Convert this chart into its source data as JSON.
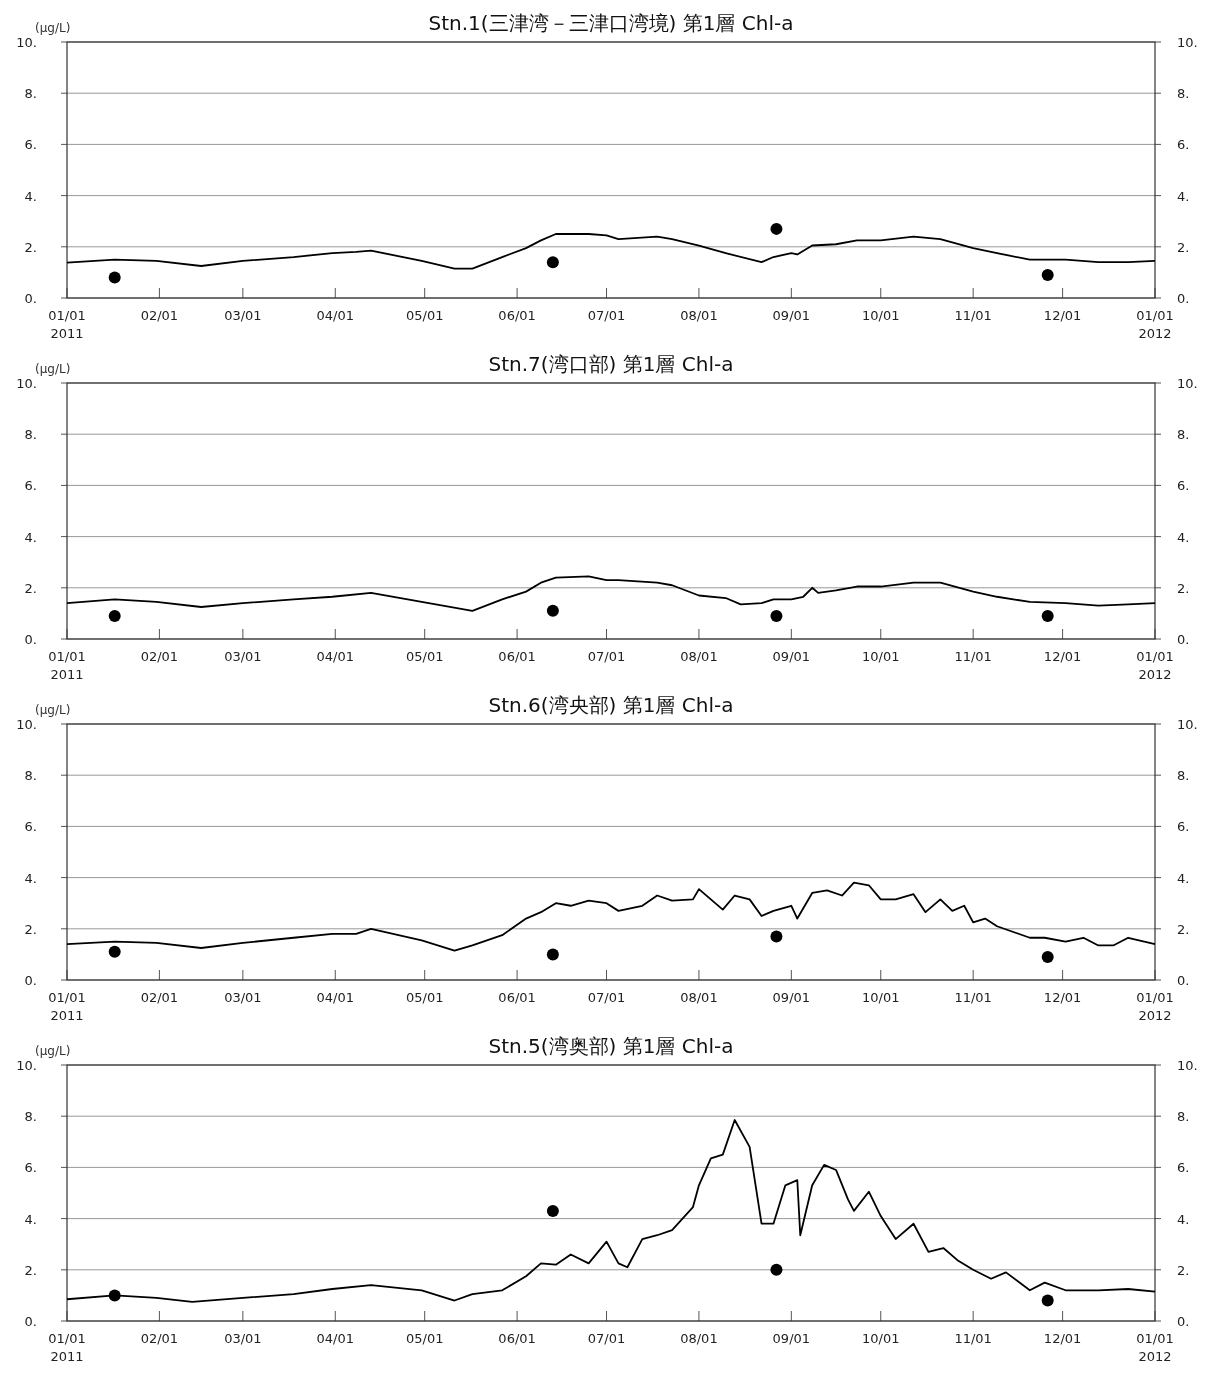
{
  "chart_data": [
    {
      "type": "line",
      "title": "Stn.1(三津湾－三津口湾境) 第1層 Chl-a",
      "ylabel": "(μg/L)",
      "xlim": [
        "2011-01-01",
        "2012-01-01"
      ],
      "xticks": [
        {
          "value": "2011-01-01",
          "label": "01/01\n2011"
        },
        {
          "value": "2011-02-01",
          "label": "02/01"
        },
        {
          "value": "2011-03-01",
          "label": "03/01"
        },
        {
          "value": "2011-04-01",
          "label": "04/01"
        },
        {
          "value": "2011-05-01",
          "label": "05/01"
        },
        {
          "value": "2011-06-01",
          "label": "06/01"
        },
        {
          "value": "2011-07-01",
          "label": "07/01"
        },
        {
          "value": "2011-08-01",
          "label": "08/01"
        },
        {
          "value": "2011-09-01",
          "label": "09/01"
        },
        {
          "value": "2011-10-01",
          "label": "10/01"
        },
        {
          "value": "2011-11-01",
          "label": "11/01"
        },
        {
          "value": "2011-12-01",
          "label": "12/01"
        },
        {
          "value": "2012-01-01",
          "label": "01/01\n2012"
        }
      ],
      "ylim": [
        0,
        10
      ],
      "yticks": [
        {
          "value": 0,
          "label": "0."
        },
        {
          "value": 2,
          "label": "2."
        },
        {
          "value": 4,
          "label": "4."
        },
        {
          "value": 6,
          "label": "6."
        },
        {
          "value": 8,
          "label": "8."
        },
        {
          "value": 10,
          "label": "10."
        }
      ],
      "y2lim": [
        0,
        10
      ],
      "y2ticks": [
        {
          "value": 0,
          "label": "0."
        },
        {
          "value": 2,
          "label": "2."
        },
        {
          "value": 4,
          "label": "4."
        },
        {
          "value": 6,
          "label": "6."
        },
        {
          "value": 8,
          "label": "8."
        },
        {
          "value": 10,
          "label": "10."
        }
      ],
      "grid": "y",
      "series": [
        {
          "type": "line",
          "color": "#000000",
          "x": [
            "2011-01-01",
            "2011-01-17",
            "2011-01-31",
            "2011-02-15",
            "2011-03-01",
            "2011-03-18",
            "2011-03-31",
            "2011-04-08",
            "2011-04-13",
            "2011-04-30",
            "2011-05-11",
            "2011-05-17",
            "2011-05-27",
            "2011-06-04",
            "2011-06-09",
            "2011-06-14",
            "2011-06-25",
            "2011-07-01",
            "2011-07-05",
            "2011-07-18",
            "2011-07-23",
            "2011-08-01",
            "2011-08-10",
            "2011-08-22",
            "2011-08-26",
            "2011-09-01",
            "2011-09-03",
            "2011-09-08",
            "2011-09-16",
            "2011-09-23",
            "2011-10-01",
            "2011-10-12",
            "2011-10-21",
            "2011-11-01",
            "2011-11-09",
            "2011-11-20",
            "2011-12-02",
            "2011-12-13",
            "2011-12-23",
            "2012-01-01"
          ],
          "values": [
            1.38,
            1.5,
            1.45,
            1.25,
            1.45,
            1.6,
            1.75,
            1.8,
            1.85,
            1.45,
            1.15,
            1.15,
            1.6,
            1.95,
            2.25,
            2.5,
            2.5,
            2.45,
            2.3,
            2.4,
            2.3,
            2.05,
            1.75,
            1.4,
            1.6,
            1.75,
            1.7,
            2.05,
            2.1,
            2.25,
            2.25,
            2.4,
            2.3,
            1.95,
            1.75,
            1.5,
            1.5,
            1.4,
            1.4,
            1.45
          ]
        },
        {
          "type": "scatter",
          "color": "#000000",
          "marker": "circle",
          "x": [
            "2011-01-17",
            "2011-06-13",
            "2011-08-27",
            "2011-11-26"
          ],
          "values": [
            0.8,
            1.4,
            2.7,
            0.9
          ]
        }
      ]
    },
    {
      "type": "line",
      "title": "Stn.7(湾口部) 第1層 Chl-a",
      "ylabel": "(μg/L)",
      "xlim": [
        "2011-01-01",
        "2012-01-01"
      ],
      "xticks": [
        {
          "value": "2011-01-01",
          "label": "01/01\n2011"
        },
        {
          "value": "2011-02-01",
          "label": "02/01"
        },
        {
          "value": "2011-03-01",
          "label": "03/01"
        },
        {
          "value": "2011-04-01",
          "label": "04/01"
        },
        {
          "value": "2011-05-01",
          "label": "05/01"
        },
        {
          "value": "2011-06-01",
          "label": "06/01"
        },
        {
          "value": "2011-07-01",
          "label": "07/01"
        },
        {
          "value": "2011-08-01",
          "label": "08/01"
        },
        {
          "value": "2011-09-01",
          "label": "09/01"
        },
        {
          "value": "2011-10-01",
          "label": "10/01"
        },
        {
          "value": "2011-11-01",
          "label": "11/01"
        },
        {
          "value": "2011-12-01",
          "label": "12/01"
        },
        {
          "value": "2012-01-01",
          "label": "01/01\n2012"
        }
      ],
      "ylim": [
        0,
        10
      ],
      "yticks": [
        {
          "value": 0,
          "label": "0."
        },
        {
          "value": 2,
          "label": "2."
        },
        {
          "value": 4,
          "label": "4."
        },
        {
          "value": 6,
          "label": "6."
        },
        {
          "value": 8,
          "label": "8."
        },
        {
          "value": 10,
          "label": "10."
        }
      ],
      "y2lim": [
        0,
        10
      ],
      "y2ticks": [
        {
          "value": 0,
          "label": "0."
        },
        {
          "value": 2,
          "label": "2."
        },
        {
          "value": 4,
          "label": "4."
        },
        {
          "value": 6,
          "label": "6."
        },
        {
          "value": 8,
          "label": "8."
        },
        {
          "value": 10,
          "label": "10."
        }
      ],
      "grid": "y",
      "series": [
        {
          "type": "line",
          "color": "#000000",
          "x": [
            "2011-01-01",
            "2011-01-17",
            "2011-01-31",
            "2011-02-15",
            "2011-03-01",
            "2011-03-18",
            "2011-03-31",
            "2011-04-13",
            "2011-04-30",
            "2011-05-17",
            "2011-05-27",
            "2011-06-04",
            "2011-06-09",
            "2011-06-14",
            "2011-06-25",
            "2011-07-01",
            "2011-07-05",
            "2011-07-18",
            "2011-07-23",
            "2011-08-01",
            "2011-08-10",
            "2011-08-15",
            "2011-08-22",
            "2011-08-26",
            "2011-09-01",
            "2011-09-05",
            "2011-09-08",
            "2011-09-10",
            "2011-09-16",
            "2011-09-23",
            "2011-10-01",
            "2011-10-12",
            "2011-10-21",
            "2011-11-01",
            "2011-11-09",
            "2011-11-20",
            "2011-12-02",
            "2011-12-13",
            "2011-12-23",
            "2012-01-01"
          ],
          "values": [
            1.4,
            1.55,
            1.45,
            1.25,
            1.4,
            1.55,
            1.65,
            1.8,
            1.45,
            1.1,
            1.55,
            1.85,
            2.2,
            2.4,
            2.45,
            2.3,
            2.3,
            2.2,
            2.1,
            1.7,
            1.6,
            1.35,
            1.4,
            1.55,
            1.55,
            1.65,
            2.0,
            1.8,
            1.9,
            2.05,
            2.05,
            2.2,
            2.2,
            1.85,
            1.65,
            1.45,
            1.4,
            1.3,
            1.35,
            1.4
          ]
        },
        {
          "type": "scatter",
          "color": "#000000",
          "marker": "circle",
          "x": [
            "2011-01-17",
            "2011-06-13",
            "2011-08-27",
            "2011-11-26"
          ],
          "values": [
            0.9,
            1.1,
            0.9,
            0.9
          ]
        }
      ]
    },
    {
      "type": "line",
      "title": "Stn.6(湾央部) 第1層 Chl-a",
      "ylabel": "(μg/L)",
      "xlim": [
        "2011-01-01",
        "2012-01-01"
      ],
      "xticks": [
        {
          "value": "2011-01-01",
          "label": "01/01\n2011"
        },
        {
          "value": "2011-02-01",
          "label": "02/01"
        },
        {
          "value": "2011-03-01",
          "label": "03/01"
        },
        {
          "value": "2011-04-01",
          "label": "04/01"
        },
        {
          "value": "2011-05-01",
          "label": "05/01"
        },
        {
          "value": "2011-06-01",
          "label": "06/01"
        },
        {
          "value": "2011-07-01",
          "label": "07/01"
        },
        {
          "value": "2011-08-01",
          "label": "08/01"
        },
        {
          "value": "2011-09-01",
          "label": "09/01"
        },
        {
          "value": "2011-10-01",
          "label": "10/01"
        },
        {
          "value": "2011-11-01",
          "label": "11/01"
        },
        {
          "value": "2011-12-01",
          "label": "12/01"
        },
        {
          "value": "2012-01-01",
          "label": "01/01\n2012"
        }
      ],
      "ylim": [
        0,
        10
      ],
      "yticks": [
        {
          "value": 0,
          "label": "0."
        },
        {
          "value": 2,
          "label": "2."
        },
        {
          "value": 4,
          "label": "4."
        },
        {
          "value": 6,
          "label": "6."
        },
        {
          "value": 8,
          "label": "8."
        },
        {
          "value": 10,
          "label": "10."
        }
      ],
      "y2lim": [
        0,
        10
      ],
      "y2ticks": [
        {
          "value": 0,
          "label": "0."
        },
        {
          "value": 2,
          "label": "2."
        },
        {
          "value": 4,
          "label": "4."
        },
        {
          "value": 6,
          "label": "6."
        },
        {
          "value": 8,
          "label": "8."
        },
        {
          "value": 10,
          "label": "10."
        }
      ],
      "grid": "y",
      "series": [
        {
          "type": "line",
          "color": "#000000",
          "x": [
            "2011-01-01",
            "2011-01-17",
            "2011-01-31",
            "2011-02-15",
            "2011-03-01",
            "2011-03-18",
            "2011-03-31",
            "2011-04-08",
            "2011-04-13",
            "2011-04-30",
            "2011-05-11",
            "2011-05-17",
            "2011-05-27",
            "2011-06-04",
            "2011-06-09",
            "2011-06-14",
            "2011-06-19",
            "2011-06-25",
            "2011-07-01",
            "2011-07-05",
            "2011-07-13",
            "2011-07-18",
            "2011-07-23",
            "2011-07-30",
            "2011-08-01",
            "2011-08-05",
            "2011-08-09",
            "2011-08-13",
            "2011-08-18",
            "2011-08-22",
            "2011-08-26",
            "2011-09-01",
            "2011-09-03",
            "2011-09-08",
            "2011-09-13",
            "2011-09-18",
            "2011-09-22",
            "2011-09-27",
            "2011-10-01",
            "2011-10-06",
            "2011-10-12",
            "2011-10-16",
            "2011-10-21",
            "2011-10-25",
            "2011-10-29",
            "2011-11-01",
            "2011-11-05",
            "2011-11-09",
            "2011-11-20",
            "2011-11-25",
            "2011-12-02",
            "2011-12-08",
            "2011-12-13",
            "2011-12-18",
            "2011-12-23",
            "2012-01-01"
          ],
          "values": [
            1.4,
            1.5,
            1.45,
            1.25,
            1.45,
            1.65,
            1.8,
            1.8,
            2.0,
            1.55,
            1.15,
            1.35,
            1.75,
            2.4,
            2.65,
            3.0,
            2.9,
            3.1,
            3.0,
            2.7,
            2.9,
            3.3,
            3.1,
            3.15,
            3.55,
            3.15,
            2.75,
            3.3,
            3.15,
            2.5,
            2.7,
            2.9,
            2.4,
            3.4,
            3.5,
            3.3,
            3.8,
            3.7,
            3.15,
            3.15,
            3.35,
            2.65,
            3.15,
            2.7,
            2.9,
            2.25,
            2.4,
            2.1,
            1.65,
            1.65,
            1.5,
            1.65,
            1.35,
            1.35,
            1.65,
            1.4
          ]
        },
        {
          "type": "scatter",
          "color": "#000000",
          "marker": "circle",
          "x": [
            "2011-01-17",
            "2011-06-13",
            "2011-08-27",
            "2011-11-26"
          ],
          "values": [
            1.1,
            1.0,
            1.7,
            0.9
          ]
        }
      ]
    },
    {
      "type": "line",
      "title": "Stn.5(湾奥部) 第1層 Chl-a",
      "ylabel": "(μg/L)",
      "xlim": [
        "2011-01-01",
        "2012-01-01"
      ],
      "xticks": [
        {
          "value": "2011-01-01",
          "label": "01/01\n2011"
        },
        {
          "value": "2011-02-01",
          "label": "02/01"
        },
        {
          "value": "2011-03-01",
          "label": "03/01"
        },
        {
          "value": "2011-04-01",
          "label": "04/01"
        },
        {
          "value": "2011-05-01",
          "label": "05/01"
        },
        {
          "value": "2011-06-01",
          "label": "06/01"
        },
        {
          "value": "2011-07-01",
          "label": "07/01"
        },
        {
          "value": "2011-08-01",
          "label": "08/01"
        },
        {
          "value": "2011-09-01",
          "label": "09/01"
        },
        {
          "value": "2011-10-01",
          "label": "10/01"
        },
        {
          "value": "2011-11-01",
          "label": "11/01"
        },
        {
          "value": "2011-12-01",
          "label": "12/01"
        },
        {
          "value": "2012-01-01",
          "label": "01/01\n2012"
        }
      ],
      "ylim": [
        0,
        10
      ],
      "yticks": [
        {
          "value": 0,
          "label": "0."
        },
        {
          "value": 2,
          "label": "2."
        },
        {
          "value": 4,
          "label": "4."
        },
        {
          "value": 6,
          "label": "6."
        },
        {
          "value": 8,
          "label": "8."
        },
        {
          "value": 10,
          "label": "10."
        }
      ],
      "y2lim": [
        0,
        10
      ],
      "y2ticks": [
        {
          "value": 0,
          "label": "0."
        },
        {
          "value": 2,
          "label": "2."
        },
        {
          "value": 4,
          "label": "4."
        },
        {
          "value": 6,
          "label": "6."
        },
        {
          "value": 8,
          "label": "8."
        },
        {
          "value": 10,
          "label": "10."
        }
      ],
      "grid": "y",
      "series": [
        {
          "type": "line",
          "color": "#000000",
          "x": [
            "2011-01-01",
            "2011-01-17",
            "2011-01-31",
            "2011-02-12",
            "2011-03-01",
            "2011-03-18",
            "2011-03-31",
            "2011-04-13",
            "2011-04-30",
            "2011-05-11",
            "2011-05-17",
            "2011-05-27",
            "2011-06-04",
            "2011-06-09",
            "2011-06-14",
            "2011-06-19",
            "2011-06-25",
            "2011-07-01",
            "2011-07-05",
            "2011-07-08",
            "2011-07-13",
            "2011-07-18",
            "2011-07-23",
            "2011-07-30",
            "2011-08-01",
            "2011-08-05",
            "2011-08-09",
            "2011-08-13",
            "2011-08-18",
            "2011-08-22",
            "2011-08-26",
            "2011-08-30",
            "2011-09-03",
            "2011-09-04",
            "2011-09-08",
            "2011-09-12",
            "2011-09-16",
            "2011-09-20",
            "2011-09-22",
            "2011-09-27",
            "2011-10-01",
            "2011-10-06",
            "2011-10-12",
            "2011-10-17",
            "2011-10-22",
            "2011-10-27",
            "2011-11-01",
            "2011-11-07",
            "2011-11-12",
            "2011-11-20",
            "2011-11-25",
            "2011-12-02",
            "2011-12-13",
            "2011-12-23",
            "2012-01-01"
          ],
          "values": [
            0.85,
            1.0,
            0.9,
            0.75,
            0.9,
            1.05,
            1.25,
            1.4,
            1.2,
            0.8,
            1.05,
            1.2,
            1.75,
            2.25,
            2.2,
            2.6,
            2.25,
            3.1,
            2.25,
            2.1,
            3.2,
            3.35,
            3.55,
            4.45,
            5.3,
            6.35,
            6.5,
            7.85,
            6.8,
            3.8,
            3.8,
            5.3,
            5.5,
            3.35,
            5.3,
            6.1,
            5.9,
            4.75,
            4.3,
            5.05,
            4.1,
            3.2,
            3.8,
            2.7,
            2.85,
            2.35,
            2.0,
            1.65,
            1.9,
            1.2,
            1.5,
            1.2,
            1.2,
            1.25,
            1.15
          ]
        },
        {
          "type": "scatter",
          "color": "#000000",
          "marker": "circle",
          "x": [
            "2011-01-17",
            "2011-06-13",
            "2011-08-27",
            "2011-11-26"
          ],
          "values": [
            1.0,
            4.3,
            2.0,
            0.8
          ]
        }
      ]
    }
  ]
}
